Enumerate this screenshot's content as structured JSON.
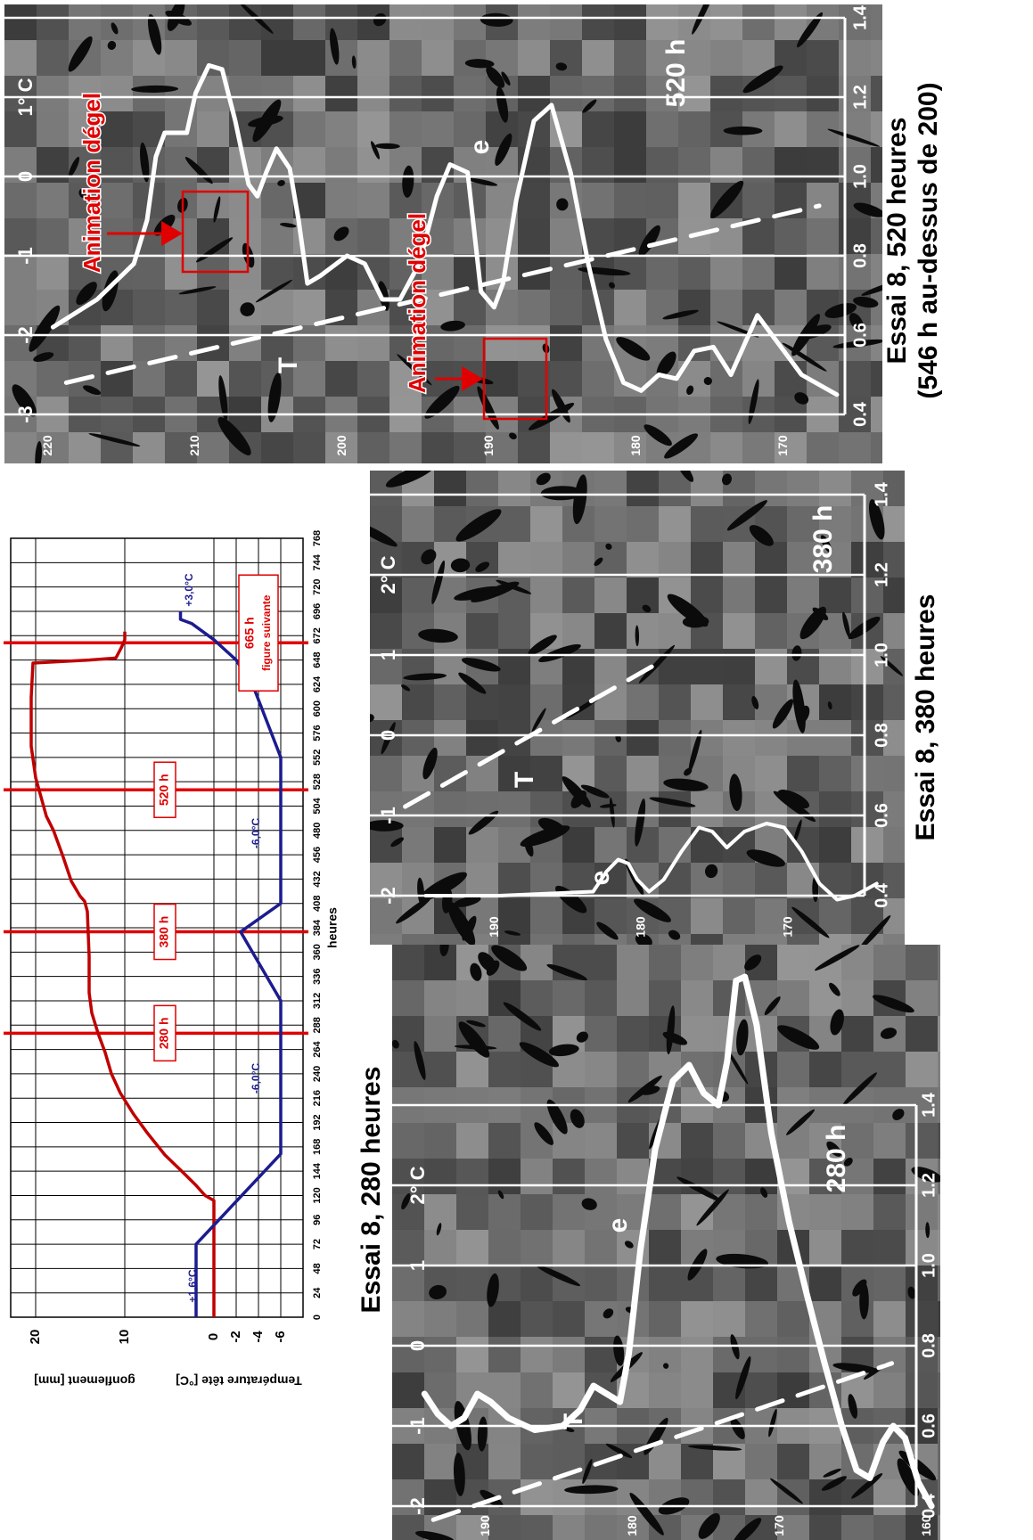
{
  "chart_data": [
    {
      "type": "line",
      "xlabel": "heures",
      "ylabel": "gonflement [mm]",
      "y2label": "Température tête [°C]",
      "xlim": [
        0,
        768
      ],
      "xticks": [
        0,
        24,
        48,
        72,
        96,
        120,
        144,
        168,
        192,
        216,
        240,
        264,
        288,
        312,
        336,
        360,
        384,
        408,
        432,
        456,
        480,
        504,
        528,
        552,
        576,
        600,
        624,
        648,
        672,
        696,
        720,
        744,
        768
      ],
      "ylim": [
        -10,
        22.8
      ],
      "yticks": [
        0,
        10,
        20
      ],
      "y2lim": [
        -8,
        18.24
      ],
      "y2ticks": [
        -6,
        -4,
        -2
      ],
      "grid": true,
      "series": [
        {
          "color": "#c00000",
          "x": [
            0,
            115,
            120,
            130,
            143,
            160,
            182,
            200,
            221,
            240,
            261,
            280,
            300,
            320,
            356,
            400,
            410,
            415,
            430,
            456,
            480,
            494,
            532,
            563,
            611,
            645,
            648,
            650,
            660,
            668,
            676
          ],
          "values": [
            0,
            0,
            1,
            2,
            3.5,
            5.5,
            7.5,
            9,
            10.5,
            11.5,
            12.2,
            13,
            13.7,
            14,
            14,
            14.2,
            14.5,
            15,
            16,
            17,
            18,
            18.8,
            20,
            20.5,
            20.5,
            20.3,
            14,
            11,
            10.4,
            10,
            10
          ]
        },
        {
          "color": "#1c1c8f",
          "axis": "y2",
          "x": [
            0,
            72,
            161,
            312,
            380,
            408,
            552,
            620,
            648,
            668,
            684,
            688,
            696
          ],
          "values": [
            1.6,
            1.6,
            -6,
            -6,
            -2.4,
            -6,
            -6,
            -3.6,
            -2,
            0,
            2,
            3,
            3
          ]
        }
      ],
      "markers": [
        {
          "hour": 280,
          "label": "280 h"
        },
        {
          "hour": 380,
          "label": "380 h"
        },
        {
          "hour": 520,
          "label": "520 h"
        },
        {
          "hour": 665,
          "label": "665 h",
          "note": "figure suivante"
        }
      ],
      "annotations": [
        "+1,6°C",
        "-6,0°C",
        "-6,0°C",
        "+3,0°C"
      ]
    },
    {
      "type": "profile",
      "title": "Essai 8, 520 heures",
      "subtitle": "(546 h au-dessus de 200)",
      "label": "520 h",
      "xlim": [
        223,
        163.3
      ],
      "xticks": [
        220,
        210,
        200,
        190,
        180,
        170
      ],
      "ylim": [
        0.4,
        1.4
      ],
      "yticks": [
        0.4,
        0.6,
        0.8,
        {
          "value": 1,
          "label": "1.0"
        },
        1.2,
        1.4
      ],
      "y2lim": [
        -3,
        2
      ],
      "y2ticks": [
        -3,
        -2,
        -1,
        0,
        {
          "value": 1,
          "label": "1° C"
        }
      ],
      "series": [
        {
          "name": "e",
          "color": "#ffffff",
          "x": [
            219.7,
            216.7,
            214.2,
            213.3,
            212.7,
            212.1,
            210.6,
            210,
            209.1,
            208.2,
            207.3,
            206.4,
            205.8,
            205.2,
            204.5,
            203.6,
            203,
            202.4,
            201.5,
            199.7,
            198.5,
            197.3,
            196.1,
            194.8,
            193.6,
            192.7,
            191.5,
            190.6,
            189.7,
            189.1,
            188.2,
            187,
            185.8,
            184.5,
            183.3,
            182.1,
            180.9,
            179.7,
            178.5,
            177.3,
            176.1,
            174.8,
            173.6,
            171.8,
            170.6,
            168.8,
            166.4
          ],
          "values": [
            0.62,
            0.69,
            0.78,
            0.89,
            1.05,
            1.11,
            1.11,
            1.21,
            1.28,
            1.27,
            1.14,
            0.98,
            0.95,
            1.01,
            1.07,
            1.02,
            0.89,
            0.73,
            0.75,
            0.8,
            0.78,
            0.69,
            0.69,
            0.78,
            0.95,
            1.03,
            1.01,
            0.71,
            0.67,
            0.73,
            0.94,
            1.14,
            1.18,
            1.01,
            0.78,
            0.59,
            0.48,
            0.46,
            0.5,
            0.49,
            0.56,
            0.57,
            0.5,
            0.65,
            0.59,
            0.5,
            0.45
          ]
        },
        {
          "name": "T",
          "color": "#ffffff",
          "axis": "y2",
          "x": [
            218.8,
            167.6
          ],
          "values": [
            -2.6,
            -0.37
          ]
        }
      ],
      "annotations": [
        "Animation dégel",
        "Animation dégel"
      ]
    },
    {
      "type": "profile",
      "title": "Essai 8, 380 heures",
      "label": "380 h",
      "xlim": [
        198.5,
        162.1
      ],
      "xticks": [
        190,
        180,
        170
      ],
      "ylim": [
        0.4,
        1.4
      ],
      "yticks": [
        0.4,
        0.6,
        0.8,
        {
          "value": 1,
          "label": "1.0"
        },
        1.2,
        1.4
      ],
      "y2lim": [
        -2,
        3
      ],
      "y2ticks": [
        -2,
        -1,
        0,
        1,
        {
          "value": 2,
          "label": "2° C"
        }
      ],
      "series": [
        {
          "name": "e",
          "color": "#ffffff",
          "x": [
            194.7,
            189.7,
            183.3,
            182.4,
            181.6,
            180.9,
            180.3,
            179.5,
            178.5,
            177.3,
            176.1,
            175.2,
            174.2,
            173,
            171.5,
            170.3,
            169.1,
            167.9,
            166.7,
            165.5,
            164
          ],
          "values": [
            0.4,
            0.4,
            0.41,
            0.46,
            0.49,
            0.48,
            0.44,
            0.41,
            0.44,
            0.51,
            0.57,
            0.56,
            0.52,
            0.56,
            0.58,
            0.57,
            0.51,
            0.43,
            0.39,
            0.4,
            0.43
          ]
        },
        {
          "name": "T",
          "color": "#ffffff",
          "axis": "y2",
          "x": [
            196.1,
            178.5
          ],
          "values": [
            -0.89,
            0.94
          ]
        }
      ]
    },
    {
      "type": "profile",
      "title": "Essai 8, 280 heures",
      "label": "280 h",
      "xlim": [
        196.4,
        159.1
      ],
      "xticks": [
        190,
        180,
        170,
        160
      ],
      "ylim": [
        0.4,
        1.4
      ],
      "yticks": [
        0.4,
        0.6,
        0.8,
        {
          "value": 1,
          "label": "1.0"
        },
        1.2,
        1.4
      ],
      "y2lim": [
        -2,
        3
      ],
      "y2ticks": [
        -2,
        -1,
        0,
        1,
        {
          "value": 2,
          "label": "2° C"
        }
      ],
      "series": [
        {
          "name": "e",
          "color": "#ffffff",
          "x": [
            194.2,
            193.3,
            192.4,
            191.5,
            190.6,
            189.7,
            188.5,
            186.7,
            184.8,
            183.6,
            182.7,
            181.8,
            180.9,
            180.3,
            179.5,
            178.5,
            177.3,
            176.2,
            175.2,
            174.2,
            173.6,
            173,
            172.4,
            171.6,
            170.6,
            169.4,
            168.2,
            167,
            165.8,
            164.8,
            163.9,
            163,
            162.3,
            161.5,
            160.6,
            159.7
          ],
          "values": [
            0.68,
            0.63,
            0.6,
            0.62,
            0.68,
            0.66,
            0.62,
            0.59,
            0.6,
            0.64,
            0.7,
            0.68,
            0.66,
            0.78,
            1.04,
            1.29,
            1.46,
            1.5,
            1.43,
            1.4,
            1.51,
            1.71,
            1.72,
            1.6,
            1.33,
            1.11,
            0.93,
            0.76,
            0.6,
            0.49,
            0.47,
            0.56,
            0.6,
            0.57,
            0.46,
            0.4
          ]
        },
        {
          "name": "T",
          "color": "#ffffff",
          "axis": "y2",
          "x": [
            193.6,
            162.4
          ],
          "values": [
            -2.17,
            -0.22
          ]
        }
      ]
    }
  ]
}
